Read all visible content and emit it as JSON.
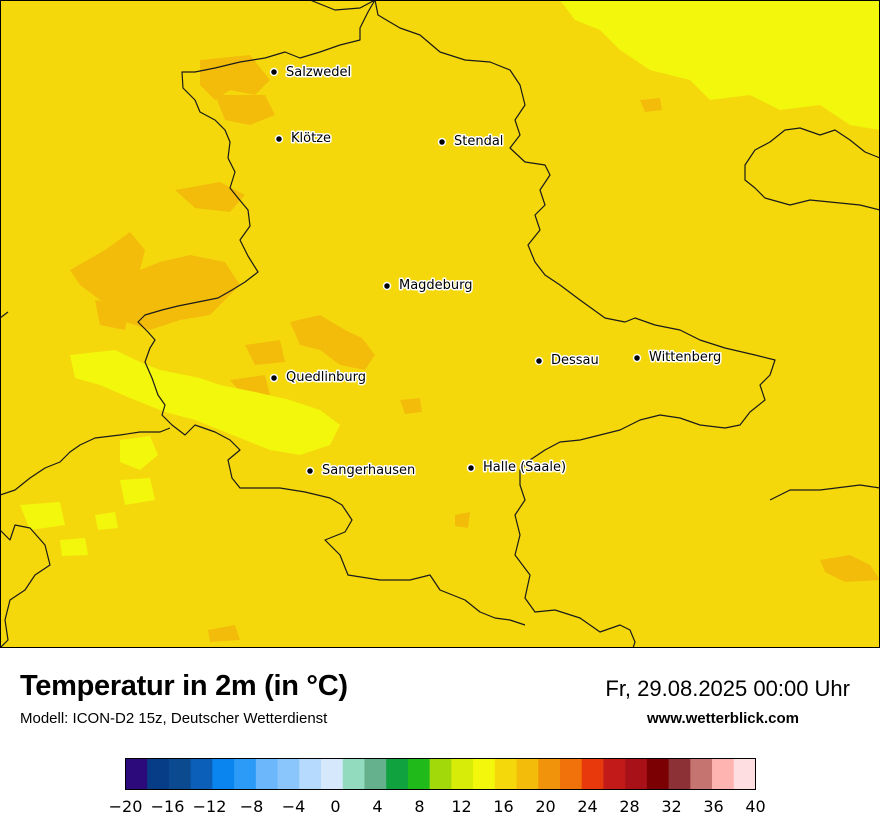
{
  "map": {
    "background_color": "#f4d80c",
    "cities": [
      {
        "name": "Salzwedel"
      },
      {
        "name": "Klötze"
      },
      {
        "name": "Stendal"
      },
      {
        "name": "Magdeburg"
      },
      {
        "name": "Dessau"
      },
      {
        "name": "Wittenberg"
      },
      {
        "name": "Quedlinburg"
      },
      {
        "name": "Sangerhausen"
      },
      {
        "name": "Halle (Saale)"
      }
    ]
  },
  "footer": {
    "title": "Temperatur in 2m (in °C)",
    "subtitle": "Modell: ICON-D2 15z, Deutscher Wetterdienst",
    "datetime": "Fr, 29.08.2025 00:00 Uhr",
    "website": "www.wetterblick.com"
  },
  "legend": {
    "colors": [
      "#2d0a7c",
      "#063d86",
      "#0b4a8e",
      "#0b5fb9",
      "#0a85f0",
      "#2c9bf8",
      "#6cb7fb",
      "#8ac6fc",
      "#b5dafd",
      "#d6e8fc",
      "#93dbbe",
      "#66b18d",
      "#10a23f",
      "#20bb1a",
      "#a2d90a",
      "#d8ec0a",
      "#f3f70c",
      "#f4d80c",
      "#f3bc0b",
      "#f1940c",
      "#f1720a",
      "#e8390c",
      "#c11a18",
      "#a81117",
      "#7b0003",
      "#8c3236",
      "#c67470",
      "#feb5b2",
      "#fedee0"
    ],
    "ticks": [
      "−20",
      "−16",
      "−12",
      "−8",
      "−4",
      "0",
      "4",
      "8",
      "12",
      "16",
      "20",
      "24",
      "28",
      "32",
      "36",
      "40"
    ]
  }
}
